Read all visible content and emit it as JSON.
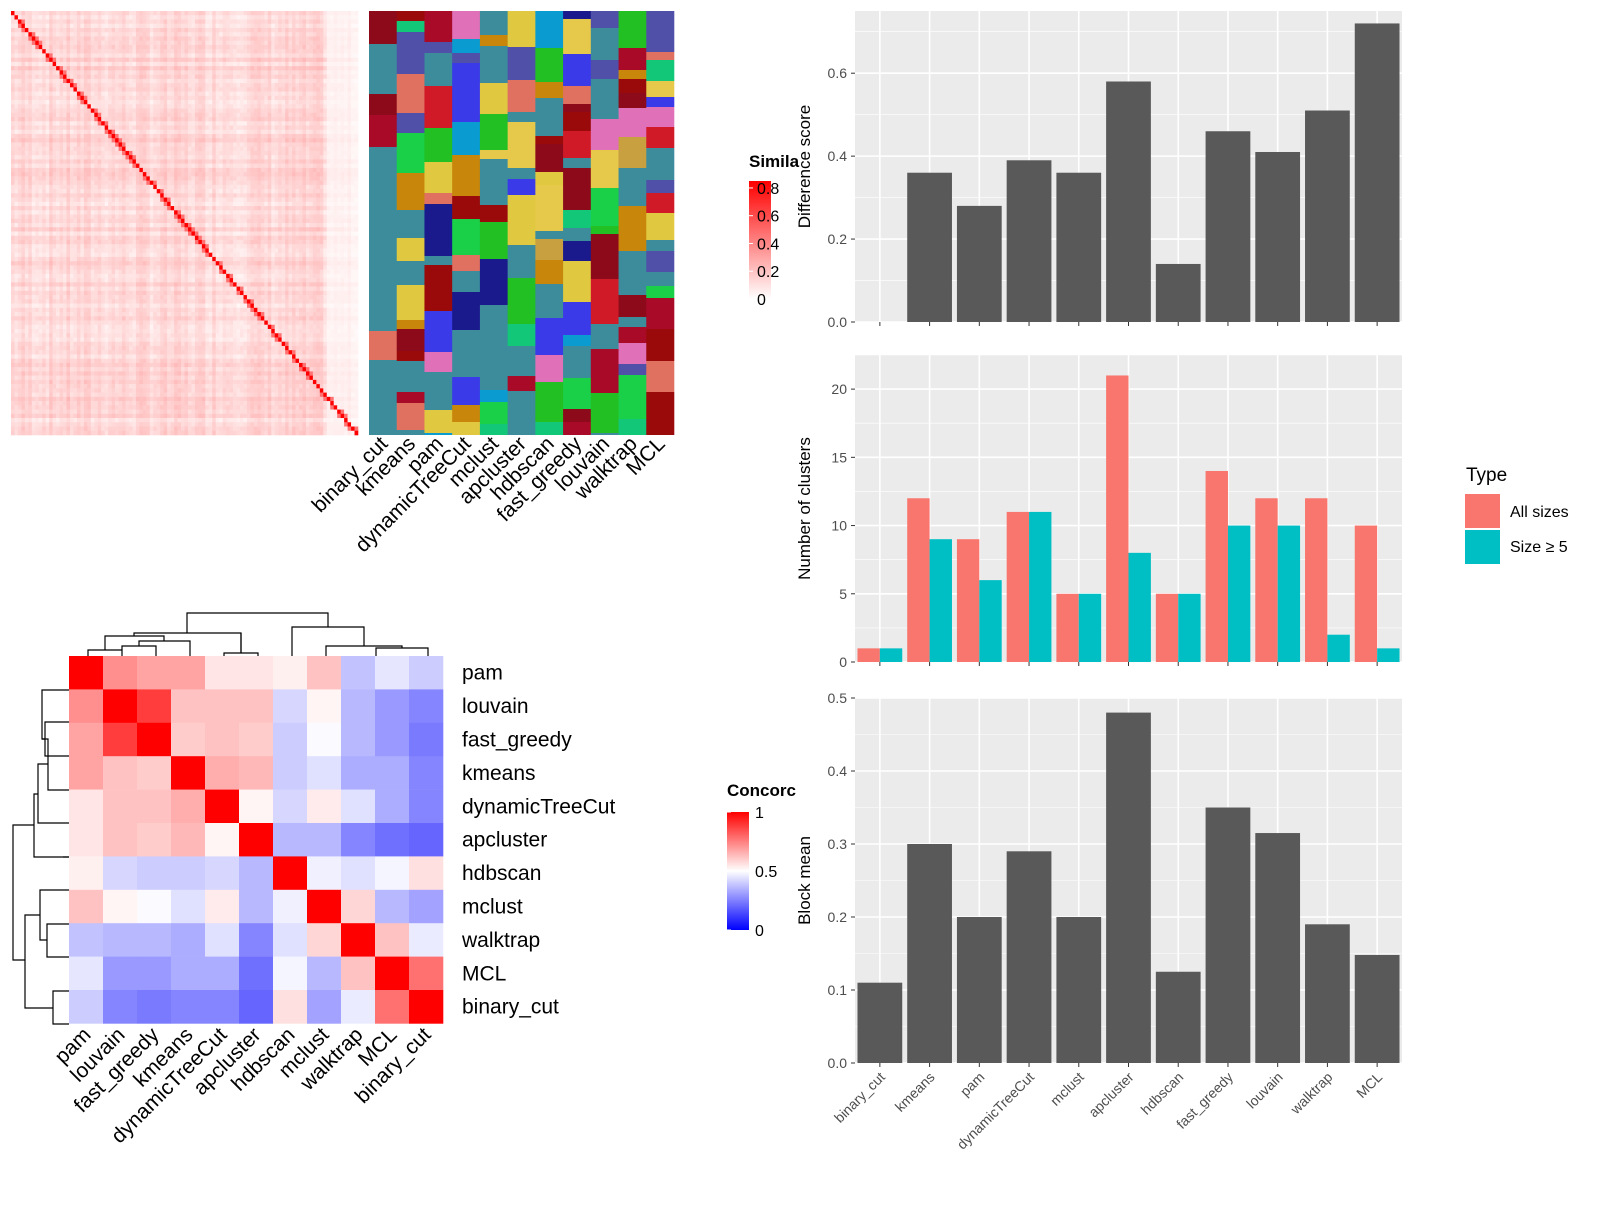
{
  "methods": [
    "binary_cut",
    "kmeans",
    "pam",
    "dynamicTreeCut",
    "mclust",
    "apcluster",
    "hdbscan",
    "fast_greedy",
    "louvain",
    "walktrap",
    "MCL"
  ],
  "colors": {
    "bar": "#595959",
    "all_sizes": "#F8766D",
    "size_ge5": "#00BFC4",
    "panel_bg": "#EBEBEB",
    "sim_high": "#FF0000",
    "sim_low": "#FFFFFF",
    "conc_high": "#FF0000",
    "conc_mid": "#FFFFFF",
    "conc_low": "#0000FF",
    "cluster_default": "#3C8C9C"
  },
  "similarity_heatmap": {
    "legend_title": "Simila",
    "legend_ticks": [
      "0.8",
      "0.6",
      "0.4",
      "0.2",
      "0"
    ],
    "method_labels": [
      "binary_cut",
      "kmeans",
      "pam",
      "dynamicTreeCut",
      "mclust",
      "apcluster",
      "hdbscan",
      "fast_greedy",
      "louvain",
      "walktrap",
      "MCL"
    ]
  },
  "concordance_heatmap": {
    "legend_title": "Concorc",
    "legend_ticks": [
      "1",
      "0.5",
      "0"
    ],
    "order": [
      "pam",
      "louvain",
      "fast_greedy",
      "kmeans",
      "dynamicTreeCut",
      "apcluster",
      "hdbscan",
      "mclust",
      "walktrap",
      "MCL",
      "binary_cut"
    ],
    "matrix": [
      [
        1.0,
        0.72,
        0.68,
        0.68,
        0.55,
        0.55,
        0.53,
        0.62,
        0.38,
        0.45,
        0.4
      ],
      [
        0.72,
        1.0,
        0.88,
        0.62,
        0.62,
        0.62,
        0.42,
        0.52,
        0.36,
        0.3,
        0.26
      ],
      [
        0.68,
        0.88,
        1.0,
        0.6,
        0.62,
        0.6,
        0.4,
        0.49,
        0.36,
        0.3,
        0.24
      ],
      [
        0.68,
        0.62,
        0.6,
        1.0,
        0.66,
        0.64,
        0.4,
        0.44,
        0.34,
        0.34,
        0.26
      ],
      [
        0.55,
        0.62,
        0.62,
        0.66,
        1.0,
        0.52,
        0.42,
        0.54,
        0.44,
        0.34,
        0.26
      ],
      [
        0.55,
        0.62,
        0.6,
        0.64,
        0.52,
        1.0,
        0.36,
        0.36,
        0.26,
        0.22,
        0.2
      ],
      [
        0.53,
        0.42,
        0.4,
        0.4,
        0.42,
        0.36,
        1.0,
        0.47,
        0.44,
        0.48,
        0.56
      ],
      [
        0.62,
        0.52,
        0.49,
        0.44,
        0.54,
        0.36,
        0.47,
        1.0,
        0.58,
        0.36,
        0.32
      ],
      [
        0.38,
        0.36,
        0.36,
        0.34,
        0.44,
        0.26,
        0.44,
        0.58,
        1.0,
        0.62,
        0.46
      ],
      [
        0.45,
        0.3,
        0.3,
        0.34,
        0.34,
        0.22,
        0.48,
        0.36,
        0.62,
        1.0,
        0.78
      ],
      [
        0.4,
        0.26,
        0.24,
        0.26,
        0.26,
        0.2,
        0.56,
        0.32,
        0.46,
        0.78,
        1.0
      ]
    ]
  },
  "chart_data": [
    {
      "type": "bar",
      "categories": [
        "binary_cut",
        "kmeans",
        "pam",
        "dynamicTreeCut",
        "mclust",
        "apcluster",
        "hdbscan",
        "fast_greedy",
        "louvain",
        "walktrap",
        "MCL"
      ],
      "values": [
        0.0,
        0.36,
        0.28,
        0.39,
        0.36,
        0.58,
        0.14,
        0.46,
        0.41,
        0.51,
        0.72
      ],
      "ylabel": "Difference score",
      "ylim": [
        0,
        0.75
      ],
      "yticks": [
        "0.0",
        "0.2",
        "0.4",
        "0.6"
      ]
    },
    {
      "type": "bar",
      "categories": [
        "binary_cut",
        "kmeans",
        "pam",
        "dynamicTreeCut",
        "mclust",
        "apcluster",
        "hdbscan",
        "fast_greedy",
        "louvain",
        "walktrap",
        "MCL"
      ],
      "series": [
        {
          "name": "All sizes",
          "values": [
            1,
            12,
            9,
            11,
            5,
            21,
            5,
            14,
            12,
            12,
            10
          ]
        },
        {
          "name": "Size ≥ 5",
          "values": [
            1,
            9,
            6,
            11,
            5,
            8,
            5,
            10,
            10,
            2,
            1
          ]
        }
      ],
      "ylabel": "Number of clusters",
      "ylim": [
        0,
        22.5
      ],
      "yticks": [
        "0",
        "5",
        "10",
        "15",
        "20"
      ],
      "legend_title": "Type",
      "legend_position": "right"
    },
    {
      "type": "bar",
      "categories": [
        "binary_cut",
        "kmeans",
        "pam",
        "dynamicTreeCut",
        "mclust",
        "apcluster",
        "hdbscan",
        "fast_greedy",
        "louvain",
        "walktrap",
        "MCL"
      ],
      "values": [
        0.11,
        0.3,
        0.2,
        0.29,
        0.2,
        0.48,
        0.125,
        0.35,
        0.315,
        0.19,
        0.148
      ],
      "ylabel": "Block mean",
      "ylim": [
        0,
        0.5
      ],
      "yticks": [
        "0.0",
        "0.1",
        "0.2",
        "0.3",
        "0.4",
        "0.5"
      ]
    }
  ]
}
